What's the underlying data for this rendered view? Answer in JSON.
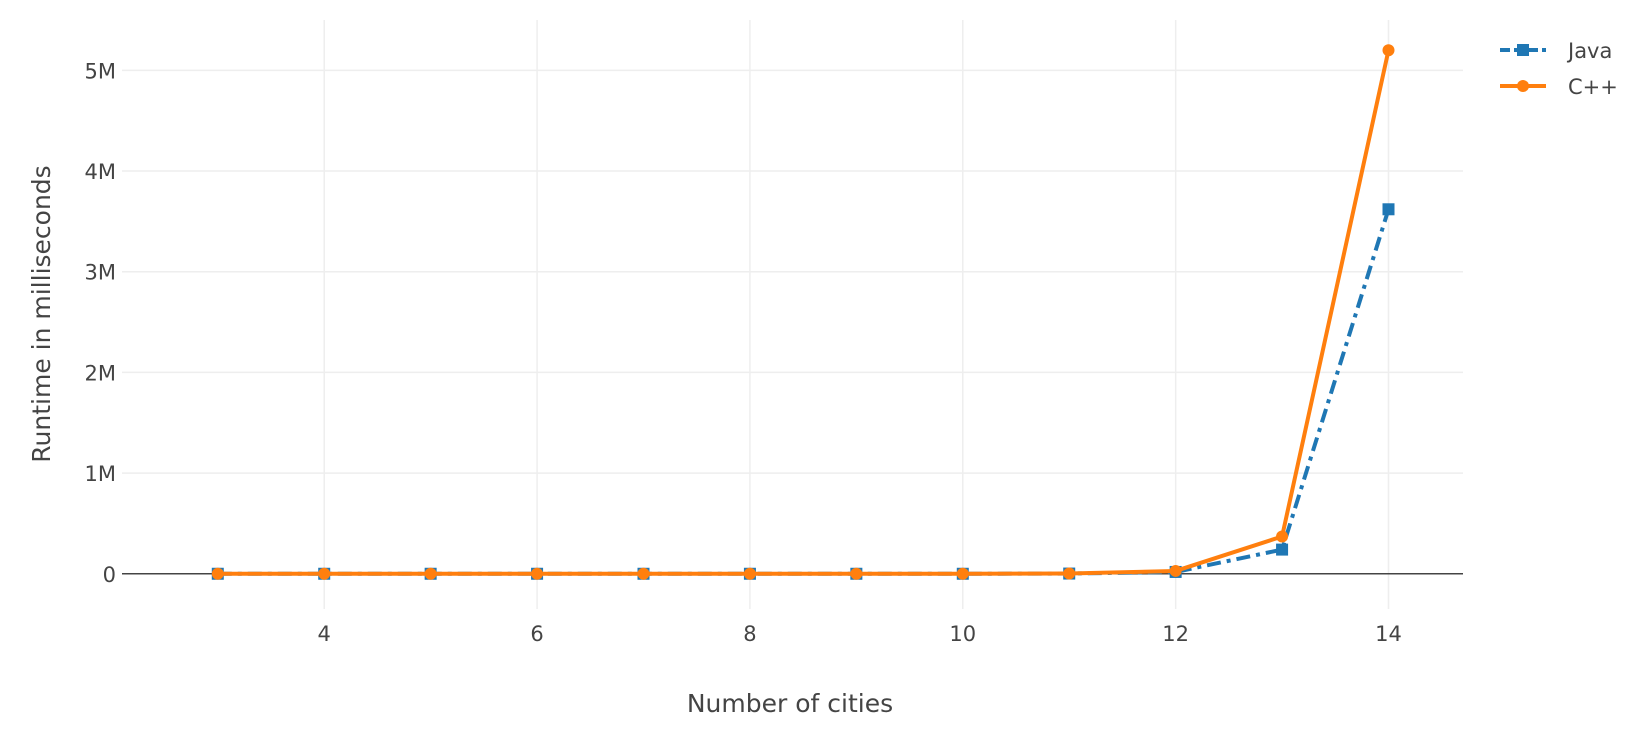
{
  "chart_data": {
    "type": "line",
    "title": "",
    "xlabel": "Number of cities",
    "ylabel": "Runtime in milliseconds",
    "x": [
      3,
      4,
      5,
      6,
      7,
      8,
      9,
      10,
      11,
      12,
      13,
      14
    ],
    "xlim": [
      2.1,
      14.7
    ],
    "ylim": [
      -350000,
      5500000
    ],
    "x_ticks": [
      4,
      6,
      8,
      10,
      12,
      14
    ],
    "y_ticks": [
      0,
      1000000,
      2000000,
      3000000,
      4000000,
      5000000
    ],
    "y_tick_labels": [
      "0",
      "1M",
      "2M",
      "3M",
      "4M",
      "5M"
    ],
    "grid": true,
    "legend_position": "top-right",
    "series": [
      {
        "name": "Java",
        "color": "#1f77b4",
        "line_style": "dash-dot",
        "marker": "square",
        "values": [
          0,
          0,
          0,
          0,
          0,
          0,
          0,
          0,
          2000,
          18000,
          240000,
          3620000
        ]
      },
      {
        "name": "C++",
        "color": "#ff7f0e",
        "line_style": "solid",
        "marker": "circle",
        "values": [
          0,
          0,
          0,
          0,
          0,
          0,
          0,
          0,
          3000,
          28000,
          370000,
          5200000
        ]
      }
    ]
  }
}
